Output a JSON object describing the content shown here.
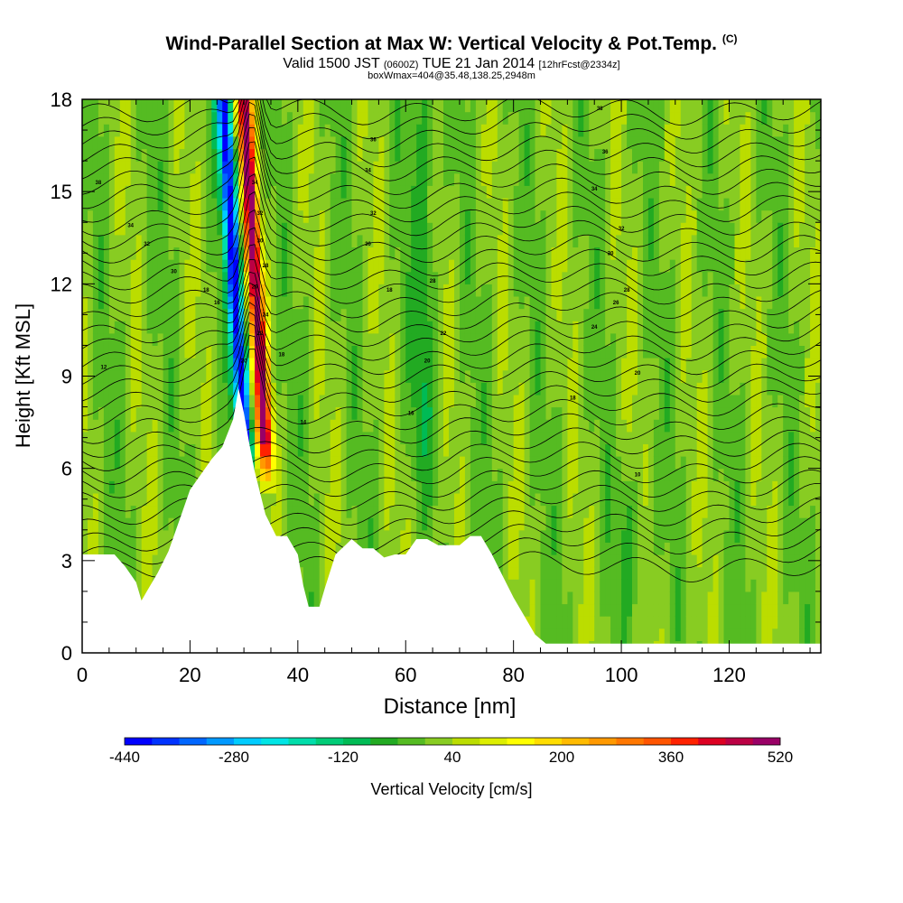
{
  "header": {
    "title": "Wind-Parallel Section at Max W: Vertical Velocity & Pot.Temp.",
    "title_mark": "(C)",
    "valid_prefix": "Valid 1500 JST",
    "valid_utc": "(0600Z)",
    "valid_date": "TUE 21 Jan 2014",
    "forecast": "[12hrFcst@2334z]",
    "box_info": "boxWmax=404@35.48,138.25,2948m"
  },
  "chart_data": {
    "type": "heatmap",
    "xlabel": "Distance [nm]",
    "ylabel": "Height [Kft MSL]",
    "xlim": [
      0,
      137
    ],
    "ylim": [
      0,
      18
    ],
    "x_ticks": [
      0,
      20,
      40,
      60,
      80,
      100,
      120
    ],
    "y_ticks": [
      0,
      3,
      6,
      9,
      12,
      15,
      18
    ],
    "colorbar": {
      "label": "Vertical Velocity [cm/s]",
      "min": -440,
      "max": 520,
      "step": 40,
      "tick_labels": [
        -440,
        -280,
        -120,
        40,
        200,
        360,
        520
      ],
      "colors": [
        "#0000ff",
        "#0033ff",
        "#0066ff",
        "#0099ff",
        "#00ccff",
        "#00e5e5",
        "#00ddaa",
        "#00cc77",
        "#00bb55",
        "#22aa22",
        "#55bb22",
        "#88cc22",
        "#bbdd00",
        "#ddee00",
        "#ffff00",
        "#ffdd00",
        "#ffbb00",
        "#ff9900",
        "#ff7700",
        "#ff5500",
        "#ff2200",
        "#dd0022",
        "#bb0044",
        "#990066"
      ]
    },
    "terrain_kft": [
      [
        0,
        3.2
      ],
      [
        3,
        3.2
      ],
      [
        6,
        3.2
      ],
      [
        8,
        2.8
      ],
      [
        10,
        2.3
      ],
      [
        11,
        1.7
      ],
      [
        12,
        2.0
      ],
      [
        14,
        2.6
      ],
      [
        16,
        3.3
      ],
      [
        18,
        4.3
      ],
      [
        20,
        5.3
      ],
      [
        22,
        5.8
      ],
      [
        24,
        6.3
      ],
      [
        26,
        6.7
      ],
      [
        28,
        7.6
      ],
      [
        29,
        8.6
      ],
      [
        30,
        7.8
      ],
      [
        31,
        6.8
      ],
      [
        32,
        5.9
      ],
      [
        34,
        4.5
      ],
      [
        36,
        3.8
      ],
      [
        38,
        3.8
      ],
      [
        40,
        3.2
      ],
      [
        41,
        2.2
      ],
      [
        42,
        1.5
      ],
      [
        44,
        1.5
      ],
      [
        45,
        2.1
      ],
      [
        47,
        3.2
      ],
      [
        50,
        3.7
      ],
      [
        52,
        3.4
      ],
      [
        54,
        3.4
      ],
      [
        56,
        3.1
      ],
      [
        58,
        3.2
      ],
      [
        60,
        3.2
      ],
      [
        62,
        3.7
      ],
      [
        64,
        3.7
      ],
      [
        66,
        3.5
      ],
      [
        68,
        3.5
      ],
      [
        70,
        3.5
      ],
      [
        72,
        3.8
      ],
      [
        74,
        3.8
      ],
      [
        76,
        3.2
      ],
      [
        78,
        2.5
      ],
      [
        80,
        1.8
      ],
      [
        82,
        1.2
      ],
      [
        84,
        0.6
      ],
      [
        86,
        0.3
      ],
      [
        100,
        0.3
      ],
      [
        137,
        0.3
      ]
    ],
    "w_max_cm_s": 404,
    "contour_labels": [
      {
        "x": 3,
        "y": 15.3,
        "t": "38"
      },
      {
        "x": 9,
        "y": 13.9,
        "t": "34"
      },
      {
        "x": 12,
        "y": 13.3,
        "t": "32"
      },
      {
        "x": 17,
        "y": 12.4,
        "t": "30"
      },
      {
        "x": 23,
        "y": 11.8,
        "t": "18"
      },
      {
        "x": 25,
        "y": 11.4,
        "t": "16"
      },
      {
        "x": 4,
        "y": 9.3,
        "t": "12"
      },
      {
        "x": 32,
        "y": 15.3,
        "t": "34"
      },
      {
        "x": 33,
        "y": 14.3,
        "t": "32"
      },
      {
        "x": 33,
        "y": 13.4,
        "t": "30"
      },
      {
        "x": 34,
        "y": 12.6,
        "t": "28"
      },
      {
        "x": 32,
        "y": 11.9,
        "t": "26"
      },
      {
        "x": 34,
        "y": 11.0,
        "t": "24"
      },
      {
        "x": 33,
        "y": 10.4,
        "t": "22"
      },
      {
        "x": 30,
        "y": 9.5,
        "t": "20"
      },
      {
        "x": 37,
        "y": 9.7,
        "t": "18"
      },
      {
        "x": 41,
        "y": 7.5,
        "t": "14"
      },
      {
        "x": 54,
        "y": 16.7,
        "t": "36"
      },
      {
        "x": 53,
        "y": 15.7,
        "t": "34"
      },
      {
        "x": 54,
        "y": 14.3,
        "t": "32"
      },
      {
        "x": 53,
        "y": 13.3,
        "t": "30"
      },
      {
        "x": 57,
        "y": 11.8,
        "t": "18"
      },
      {
        "x": 65,
        "y": 12.1,
        "t": "28"
      },
      {
        "x": 67,
        "y": 10.4,
        "t": "22"
      },
      {
        "x": 64,
        "y": 9.5,
        "t": "20"
      },
      {
        "x": 61,
        "y": 7.8,
        "t": "16"
      },
      {
        "x": 96,
        "y": 17.7,
        "t": "38"
      },
      {
        "x": 97,
        "y": 16.3,
        "t": "36"
      },
      {
        "x": 95,
        "y": 15.1,
        "t": "34"
      },
      {
        "x": 100,
        "y": 13.8,
        "t": "32"
      },
      {
        "x": 98,
        "y": 13.0,
        "t": "30"
      },
      {
        "x": 101,
        "y": 11.8,
        "t": "28"
      },
      {
        "x": 99,
        "y": 11.4,
        "t": "26"
      },
      {
        "x": 95,
        "y": 10.6,
        "t": "24"
      },
      {
        "x": 103,
        "y": 9.1,
        "t": "20"
      },
      {
        "x": 91,
        "y": 8.3,
        "t": "18"
      },
      {
        "x": 103,
        "y": 5.8,
        "t": "10"
      }
    ]
  }
}
